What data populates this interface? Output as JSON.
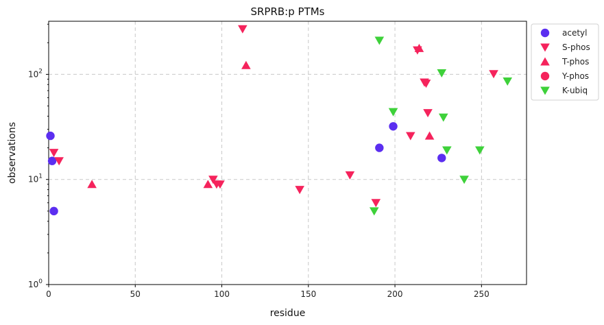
{
  "chart_data": {
    "type": "scatter",
    "title": "SRPRB:p PTMs",
    "xlabel": "residue",
    "ylabel": "observations",
    "xlim": [
      0,
      276
    ],
    "ylim": [
      1,
      320
    ],
    "yscale": "log",
    "grid": true,
    "legend_position": "outside-top-right",
    "x_ticks": [
      {
        "value": 0,
        "label": "0"
      },
      {
        "value": 50,
        "label": "50"
      },
      {
        "value": 100,
        "label": "100"
      },
      {
        "value": 150,
        "label": "150"
      },
      {
        "value": 200,
        "label": "200"
      },
      {
        "value": 250,
        "label": "250"
      }
    ],
    "y_ticks": [
      {
        "value": 1,
        "base": "10",
        "exp": "0"
      },
      {
        "value": 10,
        "base": "10",
        "exp": "1"
      },
      {
        "value": 100,
        "base": "10",
        "exp": "2"
      }
    ],
    "series": [
      {
        "name": "acetyl",
        "marker": "circle",
        "color": "#5b2ef0",
        "points": [
          [
            1,
            26
          ],
          [
            2,
            15
          ],
          [
            3,
            5
          ],
          [
            191,
            20
          ],
          [
            199,
            32
          ],
          [
            227,
            16
          ]
        ]
      },
      {
        "name": "S-phos",
        "marker": "triangle-down",
        "color": "#f5235c",
        "points": [
          [
            3,
            18
          ],
          [
            6,
            15
          ],
          [
            95,
            10
          ],
          [
            97,
            9
          ],
          [
            99,
            9
          ],
          [
            112,
            270
          ],
          [
            145,
            8
          ],
          [
            174,
            11
          ],
          [
            189,
            6
          ],
          [
            209,
            26
          ],
          [
            213,
            170
          ],
          [
            217,
            84
          ],
          [
            218,
            82
          ],
          [
            219,
            43
          ],
          [
            257,
            101
          ]
        ]
      },
      {
        "name": "T-phos",
        "marker": "triangle-up",
        "color": "#f5235c",
        "points": [
          [
            25,
            9
          ],
          [
            92,
            9
          ],
          [
            114,
            122
          ],
          [
            214,
            177
          ],
          [
            220,
            26
          ]
        ]
      },
      {
        "name": "Y-phos",
        "marker": "circle",
        "color": "#f5235c",
        "points": []
      },
      {
        "name": "K-ubiq",
        "marker": "triangle-down",
        "color": "#3ed13a",
        "points": [
          [
            188,
            5
          ],
          [
            191,
            210
          ],
          [
            199,
            44
          ],
          [
            227,
            103
          ],
          [
            228,
            39
          ],
          [
            230,
            19
          ],
          [
            240,
            10
          ],
          [
            249,
            19
          ],
          [
            265,
            86
          ]
        ]
      }
    ]
  }
}
